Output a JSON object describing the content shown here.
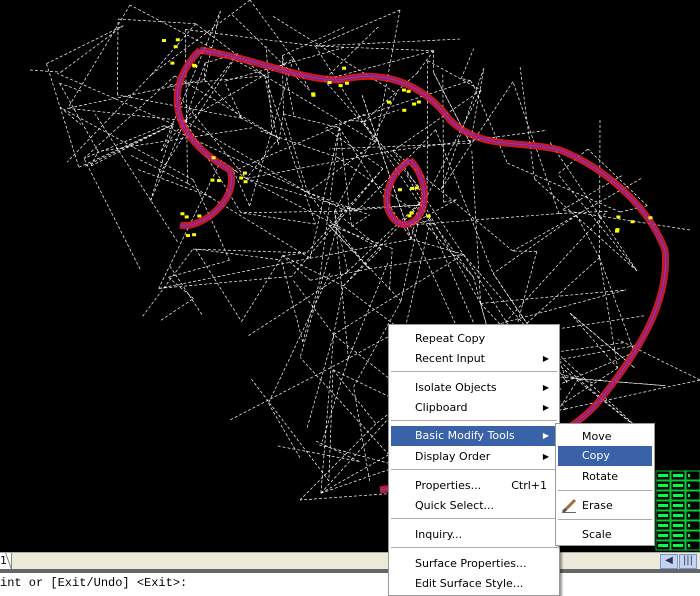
{
  "context_menu": {
    "items": [
      {
        "label": "Repeat Copy"
      },
      {
        "label": "Recent Input",
        "submenu": true
      },
      {
        "label": "Isolate Objects",
        "submenu": true
      },
      {
        "label": "Clipboard",
        "submenu": true
      },
      {
        "label": "Basic Modify Tools",
        "submenu": true,
        "highlighted": true
      },
      {
        "label": "Display Order",
        "submenu": true
      },
      {
        "label": "Properties...",
        "shortcut": "Ctrl+1"
      },
      {
        "label": "Quick Select..."
      },
      {
        "label": "Inquiry..."
      },
      {
        "label": "Surface Properties..."
      },
      {
        "label": "Edit Surface Style..."
      }
    ]
  },
  "submenu": {
    "items": [
      {
        "label": "Move"
      },
      {
        "label": "Copy",
        "highlighted": true
      },
      {
        "label": "Rotate"
      },
      {
        "label": "Erase",
        "icon": "eraser-icon"
      },
      {
        "label": "Scale"
      }
    ]
  },
  "layout_tab": {
    "label": "1"
  },
  "command_line": {
    "text": "int or [Exit/Undo] <Exit>:"
  },
  "colors": {
    "background": "#000000",
    "mesh": "#ffffff",
    "alignment": "#ff2020",
    "centerline": "#3030ff",
    "points": "#ffff00",
    "highlight": "#3a62a8",
    "table": "#00ff40"
  }
}
